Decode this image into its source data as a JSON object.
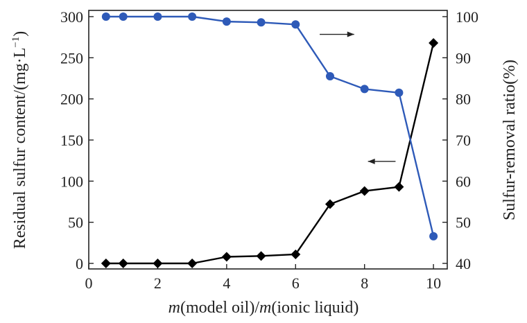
{
  "chart_data": {
    "type": "line",
    "x_axis": {
      "label_italic_1": "m",
      "label_part_1": "(model oil)/",
      "label_italic_2": "m",
      "label_part_2": "(ionic liquid)",
      "range": [
        0,
        10.4
      ],
      "ticks": [
        "0",
        "2",
        "4",
        "6",
        "8",
        "10"
      ]
    },
    "y_axis_left": {
      "label_main": "Residual sulfur content/(mg·L",
      "label_sup": "−1",
      "label_end": ")",
      "range": [
        0,
        300
      ],
      "ticks": [
        "0",
        "50",
        "100",
        "150",
        "200",
        "250",
        "300"
      ]
    },
    "y_axis_right": {
      "label": "Sulfur-removal ratio(%)",
      "range": [
        40,
        100
      ],
      "ticks": [
        "40",
        "50",
        "60",
        "70",
        "80",
        "90",
        "100"
      ]
    },
    "series": [
      {
        "axis": "left",
        "marker": "diamond",
        "color": "#000000",
        "x": [
          0.5,
          1,
          2,
          3,
          4,
          5,
          6,
          7,
          8,
          9,
          10
        ],
        "values": [
          0,
          0,
          0,
          0,
          8,
          9,
          11,
          72,
          88,
          93,
          268
        ]
      },
      {
        "axis": "right",
        "marker": "circle",
        "color": "#2e5ab8",
        "x": [
          0.5,
          1,
          2,
          3,
          4,
          5,
          6,
          7,
          8,
          9,
          10
        ],
        "values": [
          100,
          100,
          100,
          100,
          98.8,
          98.6,
          98.1,
          85.5,
          82.4,
          81.5,
          46.6
        ]
      }
    ],
    "arrows": [
      {
        "points_to": "right",
        "series_axis": "right"
      },
      {
        "points_to": "left",
        "series_axis": "left"
      }
    ],
    "grid": false,
    "legend": "none"
  }
}
